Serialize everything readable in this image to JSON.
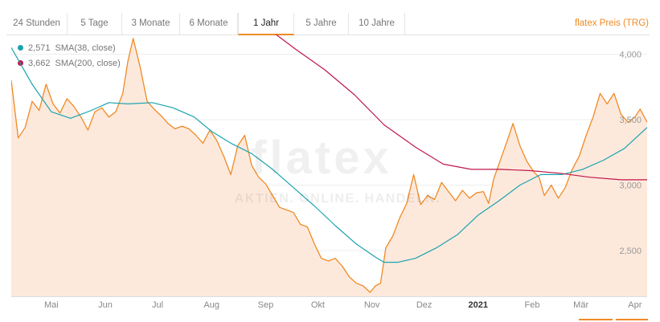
{
  "tabs": [
    {
      "label": "24 Stunden",
      "active": false
    },
    {
      "label": "5 Tage",
      "active": false
    },
    {
      "label": "3 Monate",
      "active": false
    },
    {
      "label": "6 Monate",
      "active": false
    },
    {
      "label": "1 Jahr",
      "active": true
    },
    {
      "label": "5 Jahre",
      "active": false
    },
    {
      "label": "10 Jahre",
      "active": false
    }
  ],
  "instrument_label": "flatex Preis (TRG)",
  "watermark": {
    "brand": "flatex",
    "tagline": "AKTIEN. ONLINE. HANDELN."
  },
  "colors": {
    "price": "#f08a24",
    "sma38": "#1aa3b0",
    "sma200": "#c0174a",
    "fill": "#fde9dc",
    "accent": "#f08a24"
  },
  "chart_data": {
    "type": "line",
    "x_axis_type": "date",
    "x_range": [
      "2020-04-08",
      "2021-04-08"
    ],
    "ylim": [
      2150,
      4150
    ],
    "yticks": [
      2500,
      3000,
      3500,
      4000
    ],
    "ytick_labels": [
      "2,500",
      "3,000",
      "3,500",
      "4,000"
    ],
    "xticks": [
      {
        "date": "2020-05-01",
        "label": "Mai",
        "bold": false
      },
      {
        "date": "2020-06-01",
        "label": "Jun",
        "bold": false
      },
      {
        "date": "2020-07-01",
        "label": "Jul",
        "bold": false
      },
      {
        "date": "2020-08-01",
        "label": "Aug",
        "bold": false
      },
      {
        "date": "2020-09-01",
        "label": "Sep",
        "bold": false
      },
      {
        "date": "2020-10-01",
        "label": "Okt",
        "bold": false
      },
      {
        "date": "2020-11-01",
        "label": "Nov",
        "bold": false
      },
      {
        "date": "2020-12-01",
        "label": "Dez",
        "bold": false
      },
      {
        "date": "2021-01-01",
        "label": "2021",
        "bold": true
      },
      {
        "date": "2021-02-01",
        "label": "Feb",
        "bold": false
      },
      {
        "date": "2021-03-01",
        "label": "Mär",
        "bold": false
      },
      {
        "date": "2021-04-01",
        "label": "Apr",
        "bold": false
      }
    ],
    "grid": "horizontal",
    "legend_position": "top-left",
    "series": [
      {
        "key": "price",
        "area": true,
        "points": [
          [
            "2020-04-08",
            3800
          ],
          [
            "2020-04-12",
            3360
          ],
          [
            "2020-04-16",
            3440
          ],
          [
            "2020-04-20",
            3640
          ],
          [
            "2020-04-24",
            3570
          ],
          [
            "2020-04-28",
            3770
          ],
          [
            "2020-05-02",
            3620
          ],
          [
            "2020-05-06",
            3550
          ],
          [
            "2020-05-10",
            3660
          ],
          [
            "2020-05-14",
            3600
          ],
          [
            "2020-05-18",
            3520
          ],
          [
            "2020-05-22",
            3420
          ],
          [
            "2020-05-26",
            3560
          ],
          [
            "2020-05-30",
            3590
          ],
          [
            "2020-06-03",
            3520
          ],
          [
            "2020-06-07",
            3560
          ],
          [
            "2020-06-11",
            3700
          ],
          [
            "2020-06-14",
            3950
          ],
          [
            "2020-06-17",
            4120
          ],
          [
            "2020-06-21",
            3900
          ],
          [
            "2020-06-25",
            3640
          ],
          [
            "2020-06-29",
            3580
          ],
          [
            "2020-07-03",
            3530
          ],
          [
            "2020-07-07",
            3470
          ],
          [
            "2020-07-11",
            3430
          ],
          [
            "2020-07-15",
            3450
          ],
          [
            "2020-07-19",
            3430
          ],
          [
            "2020-07-23",
            3380
          ],
          [
            "2020-07-27",
            3320
          ],
          [
            "2020-07-31",
            3420
          ],
          [
            "2020-08-04",
            3340
          ],
          [
            "2020-08-08",
            3220
          ],
          [
            "2020-08-12",
            3080
          ],
          [
            "2020-08-16",
            3300
          ],
          [
            "2020-08-20",
            3380
          ],
          [
            "2020-08-24",
            3150
          ],
          [
            "2020-08-28",
            3060
          ],
          [
            "2020-09-01",
            3010
          ],
          [
            "2020-09-05",
            2920
          ],
          [
            "2020-09-09",
            2830
          ],
          [
            "2020-09-13",
            2810
          ],
          [
            "2020-09-17",
            2790
          ],
          [
            "2020-09-21",
            2700
          ],
          [
            "2020-09-25",
            2680
          ],
          [
            "2020-09-29",
            2550
          ],
          [
            "2020-10-03",
            2440
          ],
          [
            "2020-10-07",
            2420
          ],
          [
            "2020-10-11",
            2440
          ],
          [
            "2020-10-15",
            2380
          ],
          [
            "2020-10-19",
            2300
          ],
          [
            "2020-10-23",
            2250
          ],
          [
            "2020-10-27",
            2230
          ],
          [
            "2020-10-31",
            2180
          ],
          [
            "2020-11-03",
            2230
          ],
          [
            "2020-11-06",
            2250
          ],
          [
            "2020-11-09",
            2520
          ],
          [
            "2020-11-13",
            2610
          ],
          [
            "2020-11-17",
            2750
          ],
          [
            "2020-11-21",
            2860
          ],
          [
            "2020-11-25",
            3080
          ],
          [
            "2020-11-29",
            2850
          ],
          [
            "2020-12-03",
            2920
          ],
          [
            "2020-12-07",
            2890
          ],
          [
            "2020-12-11",
            3020
          ],
          [
            "2020-12-15",
            2950
          ],
          [
            "2020-12-19",
            2880
          ],
          [
            "2020-12-23",
            2960
          ],
          [
            "2020-12-27",
            2900
          ],
          [
            "2020-12-31",
            2940
          ],
          [
            "2021-01-04",
            2950
          ],
          [
            "2021-01-07",
            2860
          ],
          [
            "2021-01-10",
            3050
          ],
          [
            "2021-01-14",
            3200
          ],
          [
            "2021-01-18",
            3350
          ],
          [
            "2021-01-21",
            3470
          ],
          [
            "2021-01-25",
            3300
          ],
          [
            "2021-01-29",
            3180
          ],
          [
            "2021-02-02",
            3100
          ],
          [
            "2021-02-05",
            3060
          ],
          [
            "2021-02-08",
            2920
          ],
          [
            "2021-02-12",
            3000
          ],
          [
            "2021-02-16",
            2900
          ],
          [
            "2021-02-20",
            2980
          ],
          [
            "2021-02-24",
            3120
          ],
          [
            "2021-02-28",
            3220
          ],
          [
            "2021-03-04",
            3380
          ],
          [
            "2021-03-08",
            3520
          ],
          [
            "2021-03-12",
            3700
          ],
          [
            "2021-03-16",
            3620
          ],
          [
            "2021-03-20",
            3700
          ],
          [
            "2021-03-24",
            3540
          ],
          [
            "2021-03-28",
            3480
          ],
          [
            "2021-04-01",
            3520
          ],
          [
            "2021-04-04",
            3580
          ],
          [
            "2021-04-08",
            3480
          ]
        ]
      },
      {
        "key": "sma38",
        "legend_value": "2,571",
        "legend_label": "SMA(38, close)",
        "points": [
          [
            "2020-04-08",
            4050
          ],
          [
            "2020-04-20",
            3770
          ],
          [
            "2020-05-01",
            3560
          ],
          [
            "2020-05-12",
            3510
          ],
          [
            "2020-05-24",
            3570
          ],
          [
            "2020-06-03",
            3630
          ],
          [
            "2020-06-14",
            3620
          ],
          [
            "2020-06-28",
            3630
          ],
          [
            "2020-07-10",
            3590
          ],
          [
            "2020-07-22",
            3520
          ],
          [
            "2020-08-01",
            3410
          ],
          [
            "2020-08-12",
            3320
          ],
          [
            "2020-08-24",
            3240
          ],
          [
            "2020-09-05",
            3120
          ],
          [
            "2020-09-17",
            2980
          ],
          [
            "2020-09-29",
            2840
          ],
          [
            "2020-10-11",
            2690
          ],
          [
            "2020-10-23",
            2550
          ],
          [
            "2020-11-03",
            2450
          ],
          [
            "2020-11-08",
            2410
          ],
          [
            "2020-11-16",
            2410
          ],
          [
            "2020-11-26",
            2440
          ],
          [
            "2020-12-08",
            2520
          ],
          [
            "2020-12-20",
            2620
          ],
          [
            "2021-01-01",
            2770
          ],
          [
            "2021-01-13",
            2880
          ],
          [
            "2021-01-25",
            3000
          ],
          [
            "2021-02-06",
            3080
          ],
          [
            "2021-02-18",
            3080
          ],
          [
            "2021-03-02",
            3120
          ],
          [
            "2021-03-14",
            3190
          ],
          [
            "2021-03-26",
            3280
          ],
          [
            "2021-04-08",
            3440
          ]
        ]
      },
      {
        "key": "sma200",
        "legend_value": "3,662",
        "legend_label": "SMA(200, close)",
        "points": [
          [
            "2020-09-01",
            4210
          ],
          [
            "2020-09-18",
            4040
          ],
          [
            "2020-10-05",
            3880
          ],
          [
            "2020-10-22",
            3690
          ],
          [
            "2020-11-08",
            3460
          ],
          [
            "2020-11-26",
            3290
          ],
          [
            "2020-12-12",
            3160
          ],
          [
            "2020-12-28",
            3120
          ],
          [
            "2021-01-14",
            3120
          ],
          [
            "2021-01-31",
            3110
          ],
          [
            "2021-02-17",
            3090
          ],
          [
            "2021-03-06",
            3060
          ],
          [
            "2021-03-24",
            3040
          ],
          [
            "2021-04-08",
            3040
          ]
        ]
      }
    ]
  }
}
